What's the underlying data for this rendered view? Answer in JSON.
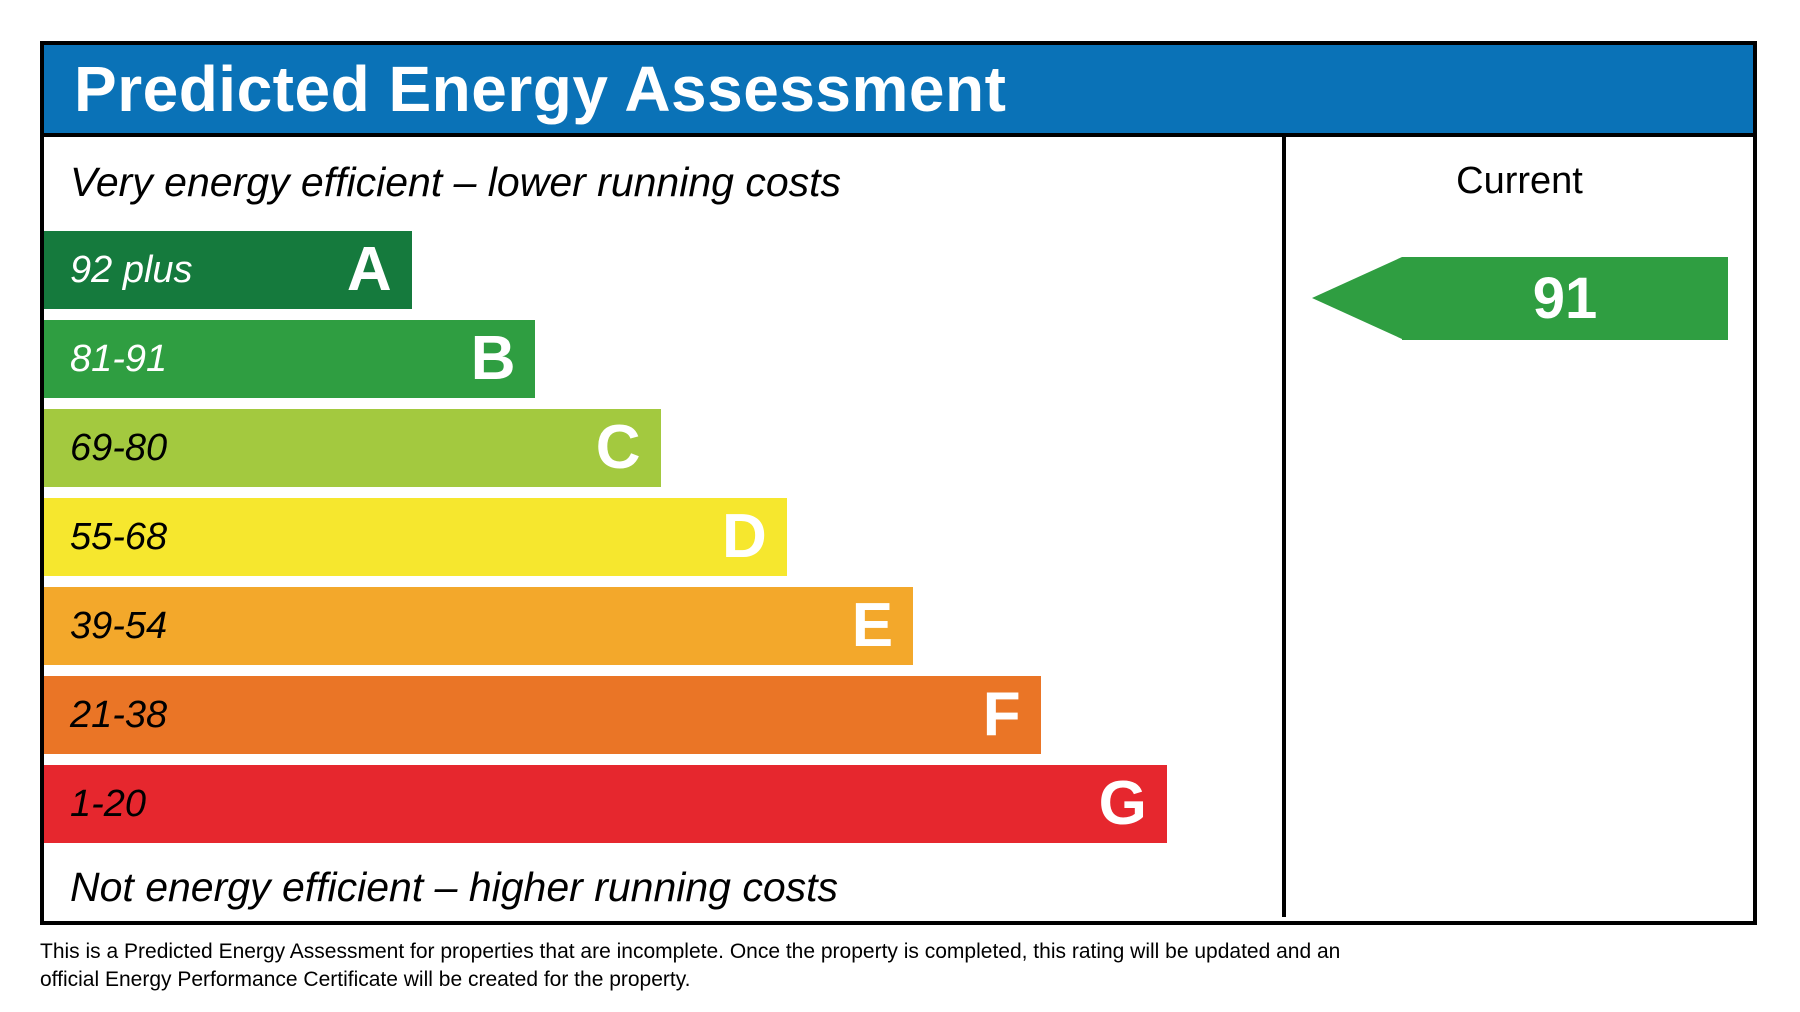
{
  "header": {
    "title": "Predicted Energy Assessment",
    "bg_color": "#0a72b7"
  },
  "chart": {
    "caption_top": "Very energy efficient – lower running costs",
    "caption_bottom": "Not energy efficient – higher running costs",
    "bands": [
      {
        "letter": "A",
        "range": "92 plus",
        "color": "#157a3d",
        "width": "29.7%",
        "label_color": "#ffffff"
      },
      {
        "letter": "B",
        "range": "81-91",
        "color": "#2f9e41",
        "width": "39.7%",
        "label_color": "#ffffff"
      },
      {
        "letter": "C",
        "range": "69-80",
        "color": "#a3c93f",
        "width": "49.8%",
        "label_color": "#000000"
      },
      {
        "letter": "D",
        "range": "55-68",
        "color": "#f6e72e",
        "width": "60.0%",
        "label_color": "#000000"
      },
      {
        "letter": "E",
        "range": "39-54",
        "color": "#f3a82b",
        "width": "70.2%",
        "label_color": "#000000"
      },
      {
        "letter": "F",
        "range": "21-38",
        "color": "#ea7526",
        "width": "80.5%",
        "label_color": "#000000"
      },
      {
        "letter": "G",
        "range": "1-20",
        "color": "#e6272e",
        "width": "90.7%",
        "label_color": "#000000"
      }
    ]
  },
  "current_panel": {
    "label": "Current",
    "value": "91",
    "arrow_color": "#2f9e41"
  },
  "footer": {
    "line1": "This is a Predicted Energy Assessment for properties that are incomplete. Once the property is completed, this rating will be updated and an",
    "line2": "official Energy Performance Certificate will be created for the property."
  },
  "chart_data": {
    "type": "bar",
    "orientation": "horizontal",
    "title": "Predicted Energy Assessment",
    "categories": [
      "A",
      "B",
      "C",
      "D",
      "E",
      "F",
      "G"
    ],
    "band_score_ranges": [
      "92 plus",
      "81-91",
      "69-80",
      "55-68",
      "39-54",
      "21-38",
      "1-20"
    ],
    "relative_bar_widths_pct": [
      29.7,
      39.7,
      49.8,
      60.0,
      70.2,
      80.5,
      90.7
    ],
    "bar_colors": [
      "#157a3d",
      "#2f9e41",
      "#a3c93f",
      "#f6e72e",
      "#f3a82b",
      "#ea7526",
      "#e6272e"
    ],
    "annotations": {
      "top": "Very energy efficient – lower running costs",
      "bottom": "Not energy efficient – higher running costs"
    },
    "markers": [
      {
        "label": "Current",
        "value": 91,
        "band": "B",
        "color": "#2f9e41"
      }
    ],
    "legend_position": "none",
    "grid": false
  }
}
